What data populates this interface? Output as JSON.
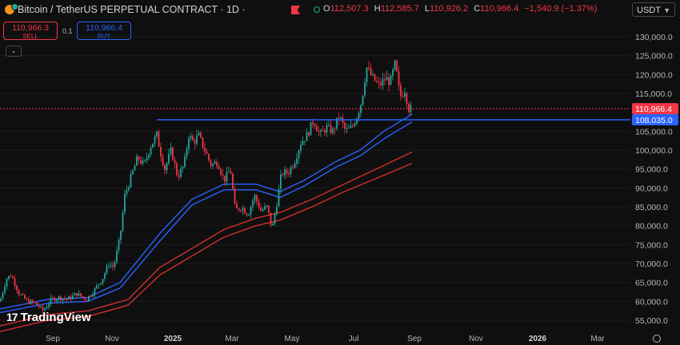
{
  "header": {
    "symbol_title": "Bitcoin / TetherUS PERPETUAL CONTRACT · 1D ·",
    "ohlc": {
      "open_label": "O",
      "open": "112,507.3",
      "high_label": "H",
      "high": "112,585.7",
      "low_label": "L",
      "low": "110,926.2",
      "close_label": "C",
      "close": "110,966.4",
      "change": "−1,540.9 (−1.37%)"
    },
    "currency": "USDT"
  },
  "trade": {
    "sell_price": "110,966.3",
    "sell_label": "SELL",
    "spread": "0.1",
    "buy_price": "110,966.4",
    "buy_label": "BUY"
  },
  "colors": {
    "up": "#26a69a",
    "down": "#f23645",
    "ma_blue": "#2962ff",
    "ma_red": "#d32f2f",
    "level_line": "#2962ff"
  },
  "chart_data": {
    "type": "candlestick",
    "ylim": [
      50000,
      135000
    ],
    "y_ticks": [
      "130,000.0",
      "125,000.0",
      "120,000.0",
      "115,000.0",
      "105,000.0",
      "100,000.0",
      "95,000.0",
      "90,000.0",
      "85,000.0",
      "80,000.0",
      "75,000.0",
      "70,000.0",
      "65,000.0",
      "60,000.0",
      "55,000.0"
    ],
    "y_tick_values": [
      130000,
      125000,
      120000,
      115000,
      105000,
      100000,
      95000,
      90000,
      85000,
      80000,
      75000,
      70000,
      65000,
      60000,
      55000
    ],
    "x_ticks": [
      "Sep",
      "Nov",
      "2025",
      "Mar",
      "May",
      "Jul",
      "Sep",
      "Nov",
      "2026",
      "Mar"
    ],
    "x_tick_bold": [
      false,
      false,
      true,
      false,
      false,
      false,
      false,
      false,
      true,
      false
    ],
    "current_price": "110,966.4",
    "current_price_value": 110966.4,
    "level_price": "108,035.0",
    "level_price_value": 108035.0,
    "price_path": [
      [
        0,
        60000
      ],
      [
        8,
        66000
      ],
      [
        14,
        67000
      ],
      [
        24,
        62000
      ],
      [
        34,
        60000
      ],
      [
        44,
        59500
      ],
      [
        54,
        57500
      ],
      [
        64,
        60500
      ],
      [
        74,
        61000
      ],
      [
        84,
        60500
      ],
      [
        96,
        62000
      ],
      [
        108,
        60500
      ],
      [
        118,
        63000
      ],
      [
        128,
        66000
      ],
      [
        136,
        70000
      ],
      [
        142,
        69000
      ],
      [
        150,
        77000
      ],
      [
        156,
        88000
      ],
      [
        164,
        93000
      ],
      [
        172,
        98000
      ],
      [
        180,
        96000
      ],
      [
        188,
        101000
      ],
      [
        196,
        104000
      ],
      [
        200,
        100000
      ],
      [
        206,
        95000
      ],
      [
        214,
        100000
      ],
      [
        222,
        93000
      ],
      [
        230,
        96000
      ],
      [
        236,
        104000
      ],
      [
        242,
        102000
      ],
      [
        248,
        104000
      ],
      [
        256,
        100000
      ],
      [
        264,
        96000
      ],
      [
        272,
        97000
      ],
      [
        280,
        92000
      ],
      [
        288,
        95000
      ],
      [
        294,
        84000
      ],
      [
        302,
        85000
      ],
      [
        310,
        83000
      ],
      [
        318,
        88000
      ],
      [
        326,
        84000
      ],
      [
        334,
        85000
      ],
      [
        340,
        79000
      ],
      [
        346,
        86000
      ],
      [
        352,
        94000
      ],
      [
        360,
        94000
      ],
      [
        368,
        97000
      ],
      [
        376,
        102000
      ],
      [
        384,
        104000
      ],
      [
        392,
        108000
      ],
      [
        400,
        104000
      ],
      [
        408,
        106000
      ],
      [
        416,
        105000
      ],
      [
        424,
        109000
      ],
      [
        432,
        105000
      ],
      [
        440,
        106000
      ],
      [
        446,
        109000
      ],
      [
        452,
        113000
      ],
      [
        458,
        122000
      ],
      [
        466,
        119000
      ],
      [
        474,
        117000
      ],
      [
        482,
        119000
      ],
      [
        488,
        118000
      ],
      [
        494,
        123000
      ],
      [
        500,
        114000
      ],
      [
        506,
        116000
      ],
      [
        511,
        111000
      ],
      [
        514,
        110966
      ]
    ],
    "ma_blue_1": [
      [
        0,
        58000
      ],
      [
        60,
        60500
      ],
      [
        110,
        61000
      ],
      [
        150,
        65000
      ],
      [
        200,
        78000
      ],
      [
        240,
        87000
      ],
      [
        280,
        91000
      ],
      [
        320,
        91000
      ],
      [
        350,
        89000
      ],
      [
        380,
        92000
      ],
      [
        420,
        97000
      ],
      [
        450,
        100000
      ],
      [
        480,
        105000
      ],
      [
        515,
        109500
      ]
    ],
    "ma_blue_2": [
      [
        0,
        57000
      ],
      [
        60,
        59500
      ],
      [
        110,
        60000
      ],
      [
        150,
        63500
      ],
      [
        200,
        76000
      ],
      [
        240,
        85500
      ],
      [
        280,
        89500
      ],
      [
        320,
        89500
      ],
      [
        350,
        87500
      ],
      [
        380,
        90500
      ],
      [
        420,
        95500
      ],
      [
        450,
        98500
      ],
      [
        480,
        103000
      ],
      [
        515,
        107500
      ]
    ],
    "ma_red_1": [
      [
        0,
        53500
      ],
      [
        60,
        56500
      ],
      [
        110,
        57500
      ],
      [
        160,
        60500
      ],
      [
        200,
        69000
      ],
      [
        240,
        74000
      ],
      [
        280,
        79000
      ],
      [
        320,
        82000
      ],
      [
        350,
        83500
      ],
      [
        390,
        87000
      ],
      [
        430,
        91000
      ],
      [
        470,
        95000
      ],
      [
        515,
        99500
      ]
    ],
    "ma_red_2": [
      [
        0,
        52000
      ],
      [
        60,
        55000
      ],
      [
        110,
        56000
      ],
      [
        160,
        59000
      ],
      [
        200,
        67000
      ],
      [
        240,
        72000
      ],
      [
        280,
        77000
      ],
      [
        320,
        80000
      ],
      [
        350,
        81500
      ],
      [
        390,
        85000
      ],
      [
        430,
        89000
      ],
      [
        470,
        92500
      ],
      [
        515,
        96500
      ]
    ]
  },
  "watermark": {
    "text": "TradingView"
  }
}
